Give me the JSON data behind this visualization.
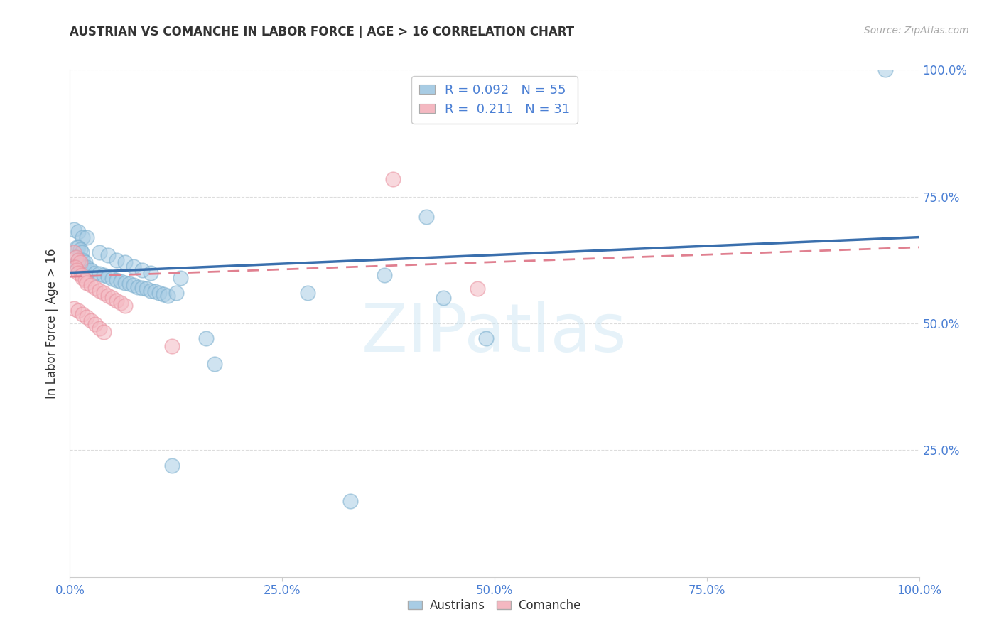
{
  "title": "AUSTRIAN VS COMANCHE IN LABOR FORCE | AGE > 16 CORRELATION CHART",
  "source": "Source: ZipAtlas.com",
  "ylabel": "In Labor Force | Age > 16",
  "xlim": [
    0,
    1
  ],
  "ylim": [
    0,
    1
  ],
  "xticks": [
    0.0,
    0.25,
    0.5,
    0.75,
    1.0
  ],
  "xtick_labels": [
    "0.0%",
    "25.0%",
    "50.0%",
    "75.0%",
    "100.0%"
  ],
  "yticks": [
    0.25,
    0.5,
    0.75,
    1.0
  ],
  "ytick_labels": [
    "25.0%",
    "50.0%",
    "75.0%",
    "100.0%"
  ],
  "blue_color": "#a8cce4",
  "pink_color": "#f4b8c1",
  "blue_edge_color": "#7aaece",
  "pink_edge_color": "#e8909e",
  "blue_line_color": "#3a6fad",
  "pink_line_color": "#e08090",
  "R_blue": 0.092,
  "N_blue": 55,
  "R_pink": 0.211,
  "N_pink": 31,
  "tick_color": "#4a7fd4",
  "label_color": "#333333",
  "source_color": "#aaaaaa",
  "watermark": "ZIPatlas",
  "background_color": "#ffffff",
  "grid_color": "#dddddd",
  "blue_points": [
    [
      0.005,
      0.685
    ],
    [
      0.01,
      0.68
    ],
    [
      0.015,
      0.67
    ],
    [
      0.02,
      0.67
    ],
    [
      0.008,
      0.65
    ],
    [
      0.01,
      0.65
    ],
    [
      0.012,
      0.645
    ],
    [
      0.014,
      0.64
    ],
    [
      0.006,
      0.63
    ],
    [
      0.01,
      0.625
    ],
    [
      0.015,
      0.625
    ],
    [
      0.018,
      0.62
    ],
    [
      0.005,
      0.615
    ],
    [
      0.008,
      0.615
    ],
    [
      0.012,
      0.615
    ],
    [
      0.016,
      0.61
    ],
    [
      0.02,
      0.61
    ],
    [
      0.025,
      0.605
    ],
    [
      0.03,
      0.6
    ],
    [
      0.035,
      0.598
    ],
    [
      0.04,
      0.595
    ],
    [
      0.045,
      0.592
    ],
    [
      0.05,
      0.588
    ],
    [
      0.055,
      0.585
    ],
    [
      0.06,
      0.582
    ],
    [
      0.065,
      0.58
    ],
    [
      0.07,
      0.578
    ],
    [
      0.075,
      0.575
    ],
    [
      0.08,
      0.572
    ],
    [
      0.085,
      0.57
    ],
    [
      0.09,
      0.568
    ],
    [
      0.095,
      0.565
    ],
    [
      0.1,
      0.563
    ],
    [
      0.105,
      0.56
    ],
    [
      0.11,
      0.558
    ],
    [
      0.115,
      0.555
    ],
    [
      0.035,
      0.64
    ],
    [
      0.045,
      0.635
    ],
    [
      0.055,
      0.625
    ],
    [
      0.065,
      0.62
    ],
    [
      0.075,
      0.612
    ],
    [
      0.085,
      0.605
    ],
    [
      0.095,
      0.6
    ],
    [
      0.12,
      0.22
    ],
    [
      0.125,
      0.56
    ],
    [
      0.13,
      0.59
    ],
    [
      0.16,
      0.47
    ],
    [
      0.17,
      0.42
    ],
    [
      0.28,
      0.56
    ],
    [
      0.33,
      0.15
    ],
    [
      0.37,
      0.595
    ],
    [
      0.42,
      0.71
    ],
    [
      0.44,
      0.55
    ],
    [
      0.49,
      0.47
    ],
    [
      0.96,
      1.0
    ]
  ],
  "pink_points": [
    [
      0.005,
      0.64
    ],
    [
      0.007,
      0.63
    ],
    [
      0.01,
      0.625
    ],
    [
      0.012,
      0.62
    ],
    [
      0.006,
      0.61
    ],
    [
      0.008,
      0.605
    ],
    [
      0.01,
      0.6
    ],
    [
      0.014,
      0.595
    ],
    [
      0.015,
      0.59
    ],
    [
      0.018,
      0.585
    ],
    [
      0.02,
      0.58
    ],
    [
      0.025,
      0.575
    ],
    [
      0.03,
      0.57
    ],
    [
      0.035,
      0.565
    ],
    [
      0.04,
      0.56
    ],
    [
      0.045,
      0.555
    ],
    [
      0.05,
      0.55
    ],
    [
      0.055,
      0.545
    ],
    [
      0.06,
      0.54
    ],
    [
      0.065,
      0.535
    ],
    [
      0.005,
      0.53
    ],
    [
      0.01,
      0.525
    ],
    [
      0.015,
      0.518
    ],
    [
      0.02,
      0.512
    ],
    [
      0.025,
      0.505
    ],
    [
      0.03,
      0.498
    ],
    [
      0.035,
      0.49
    ],
    [
      0.04,
      0.483
    ],
    [
      0.12,
      0.455
    ],
    [
      0.38,
      0.785
    ],
    [
      0.48,
      0.568
    ]
  ]
}
